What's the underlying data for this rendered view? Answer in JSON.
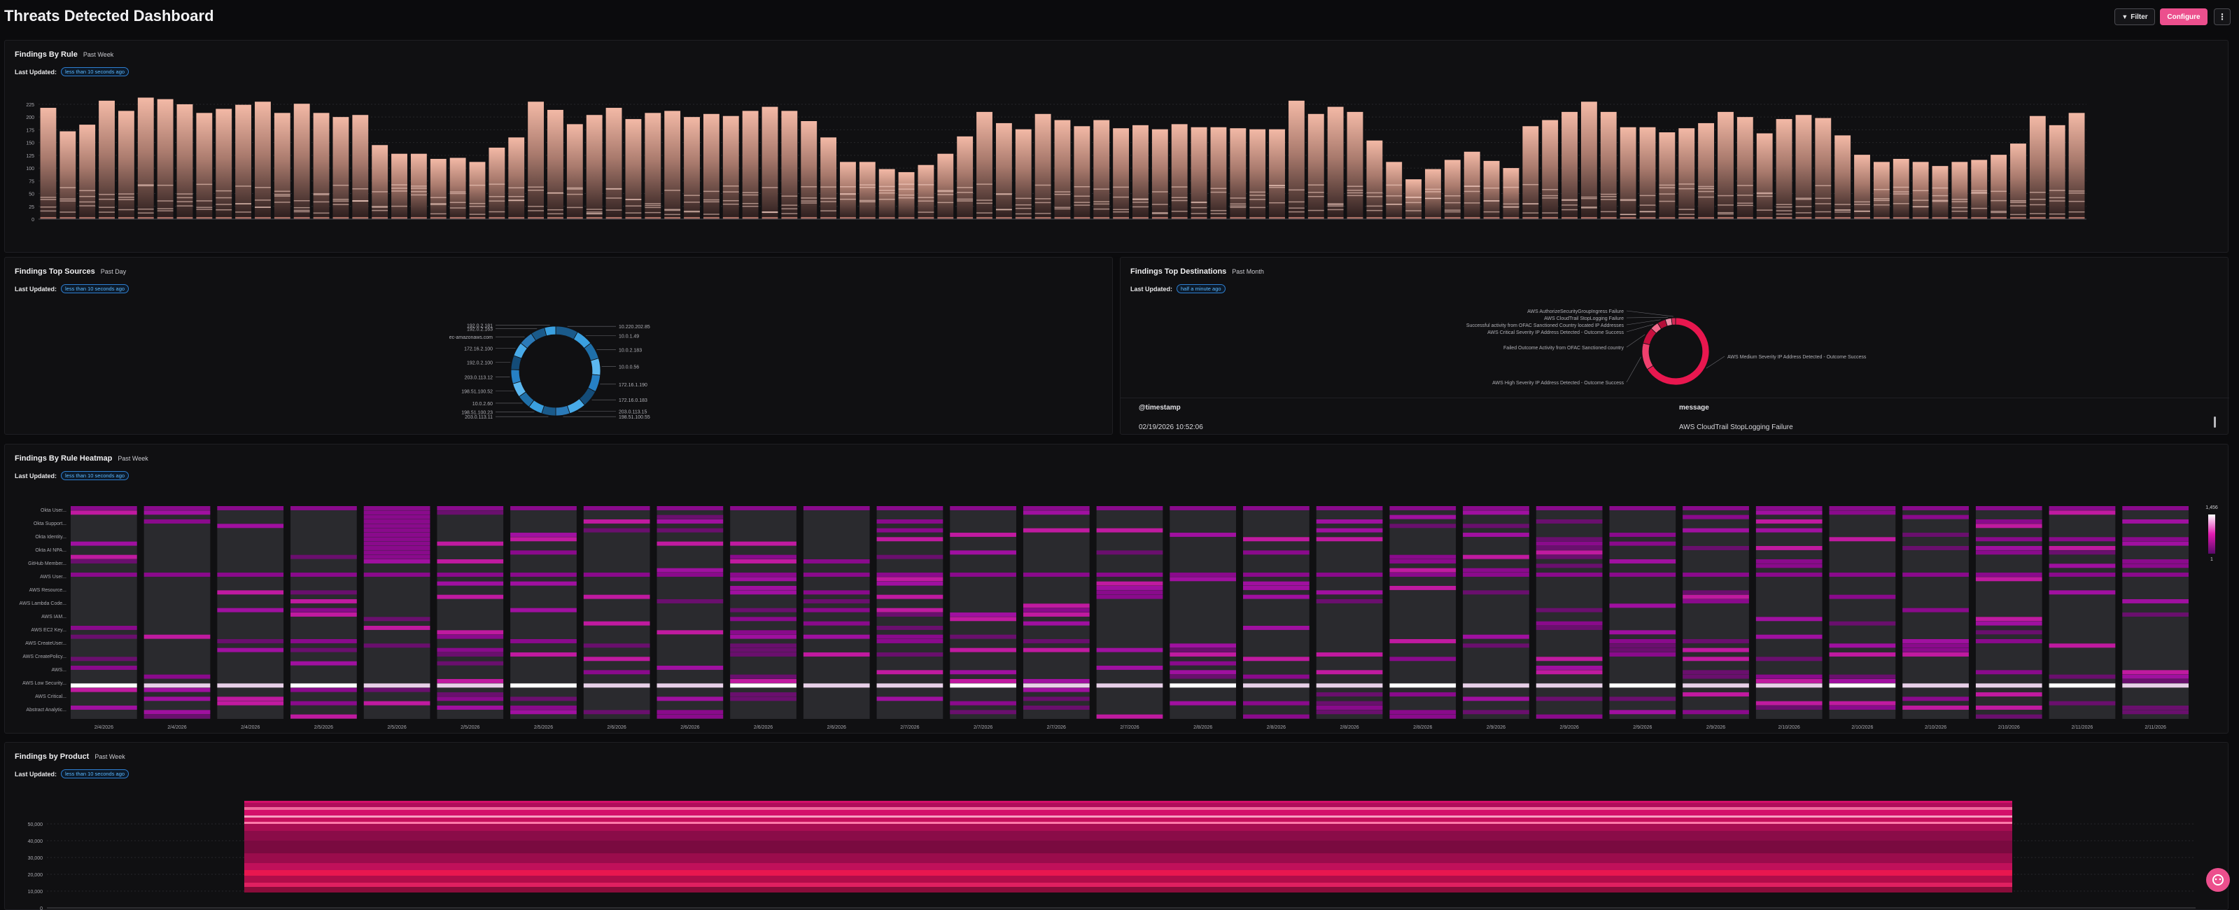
{
  "header": {
    "title": "Threats Detected Dashboard",
    "filter_label": "Filter",
    "configure_label": "Configure"
  },
  "panels": {
    "rule": {
      "title": "Findings By Rule",
      "range": "Past Week",
      "updated_label": "Last Updated:",
      "updated_value": "less than 10 seconds ago"
    },
    "sources": {
      "title": "Findings Top Sources",
      "range": "Past Day",
      "updated_label": "Last Updated:",
      "updated_value": "less than 10 seconds ago"
    },
    "destinations": {
      "title": "Findings Top Destinations",
      "range": "Past Month",
      "updated_label": "Last Updated:",
      "updated_value": "half a minute ago"
    },
    "heatmap": {
      "title": "Findings By Rule Heatmap",
      "range": "Past Week",
      "updated_label": "Last Updated:",
      "updated_value": "less than 10 seconds ago"
    },
    "product": {
      "title": "Findings by Product",
      "range": "Past Week",
      "updated_label": "Last Updated:",
      "updated_value": "less than 10 seconds ago"
    }
  },
  "table": {
    "headers": [
      "@timestamp",
      "message"
    ],
    "rows": [
      [
        "02/19/2026 10:52:06",
        "AWS CloudTrail StopLogging Failure"
      ]
    ]
  },
  "icons": {
    "filter": "filter-icon",
    "more": "more-vertical-icon",
    "assistant": "assistant-icon"
  },
  "colors": {
    "accent": "#ec4f8d",
    "link": "#5bb8ff"
  },
  "chart_data": [
    {
      "type": "bar",
      "yticks": [
        0,
        25,
        50,
        75,
        100,
        125,
        150,
        175,
        200,
        225
      ],
      "ylim": [
        0,
        240
      ],
      "values": [
        218,
        172,
        185,
        232,
        212,
        238,
        235,
        225,
        208,
        216,
        224,
        230,
        208,
        226,
        208,
        200,
        204,
        145,
        128,
        128,
        118,
        120,
        112,
        140,
        160,
        230,
        214,
        186,
        204,
        218,
        196,
        208,
        212,
        200,
        206,
        202,
        212,
        220,
        212,
        192,
        160,
        112,
        112,
        98,
        92,
        106,
        128,
        162,
        210,
        188,
        176,
        206,
        194,
        182,
        194,
        178,
        184,
        176,
        186,
        180,
        180,
        178,
        176,
        176,
        232,
        206,
        220,
        210,
        154,
        112,
        78,
        98,
        116,
        132,
        114,
        100,
        182,
        194,
        210,
        230,
        210,
        180,
        180,
        170,
        178,
        188,
        210,
        200,
        168,
        196,
        204,
        198,
        164,
        126,
        112,
        118,
        112,
        104,
        112,
        116,
        126,
        148,
        202,
        184,
        208
      ]
    },
    {
      "type": "pie",
      "labels": [
        "10.220.202.85",
        "10.0.1.49",
        "10.0.2.183",
        "10.0.0.56",
        "172.16.1.190",
        "172.16.0.183",
        "203.0.113.15",
        "198.51.100.55",
        "203.0.113.11",
        "198.51.100.23",
        "10.0.2.60",
        "198.51.100.52",
        "203.0.113.12",
        "192.0.2.100",
        "172.16.2.100",
        "ec-amazonaws.com",
        "192.0.2.163",
        "192.0.2.181"
      ],
      "values": [
        8,
        6,
        6,
        6,
        6,
        6,
        6,
        5,
        5,
        5,
        5,
        5,
        5,
        5,
        5,
        5,
        5,
        4
      ]
    },
    {
      "type": "pie",
      "labels": [
        "AWS Medium Severity IP Address Detected - Outcome Success",
        "AWS High Severity IP Address Detected - Outcome Success",
        "Failed Outcome Activity from OFAC Sanctioned country",
        "AWS Critical Severity IP Address Detected - Outcome Success",
        "Successful activity from OFAC Sanctioned Country located IP Addresses",
        "AWS CloudTrail StopLogging Failure",
        "AWS AuthorizeSecurityGroupIngress Failure"
      ],
      "values": [
        66,
        13,
        8,
        4,
        4,
        3,
        2
      ]
    },
    {
      "type": "heatmap",
      "x": [
        "2/4/2026",
        "2/4/2026",
        "2/4/2026",
        "2/5/2026",
        "2/5/2026",
        "2/5/2026",
        "2/5/2026",
        "2/6/2026",
        "2/6/2026",
        "2/6/2026",
        "2/6/2026",
        "2/7/2026",
        "2/7/2026",
        "2/7/2026",
        "2/7/2026",
        "2/8/2026",
        "2/8/2026",
        "2/8/2026",
        "2/8/2026",
        "2/9/2026",
        "2/9/2026",
        "2/9/2026",
        "2/9/2026",
        "2/10/2026",
        "2/10/2026",
        "2/10/2026",
        "2/10/2026",
        "2/11/2026",
        "2/11/2026"
      ],
      "y": [
        "Okta User...",
        "Okta Support...",
        "Okta Identity...",
        "Okta AI NPA...",
        "GitHub Member...",
        "AWS User...",
        "AWS Resource...",
        "AWS Lambda Code...",
        "AWS IAM...",
        "AWS EC2 Key...",
        "AWS CreateUser...",
        "AWS CreatePolicy...",
        "AWS...",
        "AWS Low Security...",
        "AWS Critical...",
        "Abstract Analytic..."
      ],
      "legend_ticks": [
        "1,456",
        "1"
      ]
    },
    {
      "type": "area",
      "yticks": [
        "0",
        "10,000",
        "20,000",
        "30,000",
        "40,000",
        "50,000"
      ],
      "ylim": [
        0,
        60000
      ]
    }
  ]
}
